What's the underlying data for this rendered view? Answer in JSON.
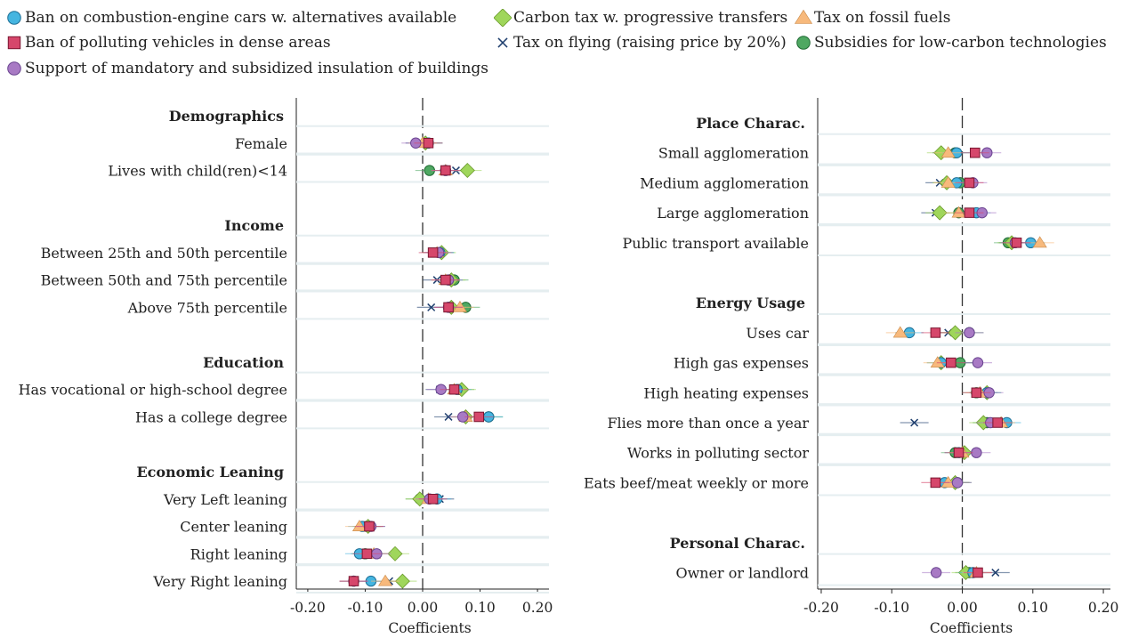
{
  "legend": [
    {
      "key": "ban_ice",
      "label": "Ban on combustion-engine cars w. alternatives available",
      "marker": "circle",
      "color": "#45b5e0"
    },
    {
      "key": "carbon_tax",
      "label": "Carbon tax w. progressive transfers",
      "marker": "diamond",
      "color": "#9fd65b"
    },
    {
      "key": "fuel_tax",
      "label": "Tax on fossil fuels",
      "marker": "triangle",
      "color": "#f7b97c"
    },
    {
      "key": "ban_polluting",
      "label": "Ban of polluting vehicles in dense areas",
      "marker": "square",
      "color": "#d6476b"
    },
    {
      "key": "flying_tax",
      "label": "Tax on flying (raising price by 20%)",
      "marker": "x",
      "color": "#1f3f6e"
    },
    {
      "key": "subsidies",
      "label": "Subsidies for low-carbon technologies",
      "marker": "circle",
      "color": "#4fa862"
    },
    {
      "key": "insulation",
      "label": "Support of mandatory and subsidized insulation of buildings",
      "marker": "circle",
      "color": "#a87ac4"
    }
  ],
  "chart_data": [
    {
      "type": "scatter",
      "xlabel": "Coefficients",
      "xlim": [
        -0.22,
        0.22
      ],
      "xticks": [
        "-0.20",
        "-0.10",
        "0.00",
        "0.10",
        "0.20"
      ],
      "xtick_values": [
        -0.2,
        -0.1,
        0.0,
        0.1,
        0.2
      ],
      "rows": [
        {
          "header": "Demographics"
        },
        {
          "label": "Female",
          "values": {
            "ban_ice": 0.01,
            "carbon_tax": 0.005,
            "fuel_tax": 0.0,
            "ban_polluting": 0.01,
            "flying_tax": -0.005,
            "subsidies": 0.01,
            "insulation": -0.012
          }
        },
        {
          "label": "Lives with child(ren)<14",
          "values": {
            "ban_ice": 0.04,
            "carbon_tax": 0.078,
            "fuel_tax": 0.04,
            "ban_polluting": 0.04,
            "flying_tax": 0.058,
            "subsidies": 0.012,
            "insulation": 0.04
          }
        },
        {
          "blank": true
        },
        {
          "header": "Income"
        },
        {
          "label": "Between 25th and 50th percentile",
          "values": {
            "ban_ice": 0.03,
            "carbon_tax": 0.033,
            "fuel_tax": 0.025,
            "ban_polluting": 0.018,
            "flying_tax": 0.025,
            "subsidies": 0.03,
            "insulation": 0.028
          }
        },
        {
          "label": "Between 50th and 75th percentile",
          "values": {
            "ban_ice": 0.045,
            "carbon_tax": 0.05,
            "fuel_tax": 0.04,
            "ban_polluting": 0.04,
            "flying_tax": 0.025,
            "subsidies": 0.055,
            "insulation": 0.045
          }
        },
        {
          "label": "Above 75th percentile",
          "values": {
            "ban_ice": 0.045,
            "carbon_tax": 0.05,
            "fuel_tax": 0.065,
            "ban_polluting": 0.045,
            "flying_tax": 0.015,
            "subsidies": 0.075,
            "insulation": 0.045
          }
        },
        {
          "blank": true
        },
        {
          "header": "Education"
        },
        {
          "label": "Has vocational or high-school degree",
          "values": {
            "ban_ice": 0.06,
            "carbon_tax": 0.068,
            "fuel_tax": 0.055,
            "ban_polluting": 0.055,
            "flying_tax": 0.03,
            "subsidies": 0.065,
            "insulation": 0.032
          }
        },
        {
          "label": "Has a college degree",
          "values": {
            "ban_ice": 0.115,
            "carbon_tax": 0.075,
            "fuel_tax": 0.075,
            "ban_polluting": 0.098,
            "flying_tax": 0.045,
            "subsidies": 0.115,
            "insulation": 0.07
          }
        },
        {
          "blank": true
        },
        {
          "header": "Economic Leaning"
        },
        {
          "label": "Very Left leaning",
          "values": {
            "ban_ice": 0.025,
            "carbon_tax": -0.005,
            "fuel_tax": 0.01,
            "ban_polluting": 0.018,
            "flying_tax": 0.03,
            "subsidies": -0.005,
            "insulation": 0.012
          }
        },
        {
          "label": "Center leaning",
          "values": {
            "ban_ice": -0.105,
            "carbon_tax": -0.095,
            "fuel_tax": -0.11,
            "ban_polluting": -0.093,
            "flying_tax": -0.09,
            "subsidies": -0.097,
            "insulation": -0.09
          }
        },
        {
          "label": "Right leaning",
          "values": {
            "ban_ice": -0.11,
            "carbon_tax": -0.048,
            "fuel_tax": -0.085,
            "ban_polluting": -0.097,
            "flying_tax": -0.08,
            "subsidies": -0.1,
            "insulation": -0.08
          }
        },
        {
          "label": "Very Right leaning",
          "values": {
            "ban_ice": -0.09,
            "carbon_tax": -0.035,
            "fuel_tax": -0.065,
            "ban_polluting": -0.12,
            "flying_tax": -0.058,
            "subsidies": -0.12,
            "insulation": -0.12
          }
        }
      ]
    },
    {
      "type": "scatter",
      "xlabel": "Coefficients",
      "xlim": [
        -0.205,
        0.21
      ],
      "xticks": [
        "-0.20",
        "-0.10",
        "0.00",
        "0.10",
        "0.20"
      ],
      "xtick_values": [
        -0.2,
        -0.1,
        0.0,
        0.1,
        0.2
      ],
      "rows": [
        {
          "header": "Place Charac."
        },
        {
          "label": "Small agglomeration",
          "values": {
            "ban_ice": -0.008,
            "carbon_tax": -0.03,
            "fuel_tax": -0.02,
            "ban_polluting": 0.018,
            "flying_tax": -0.022,
            "subsidies": -0.01,
            "insulation": 0.035
          }
        },
        {
          "label": "Medium agglomeration",
          "values": {
            "ban_ice": -0.008,
            "carbon_tax": -0.022,
            "fuel_tax": -0.02,
            "ban_polluting": 0.01,
            "flying_tax": -0.032,
            "subsidies": -0.003,
            "insulation": 0.015
          }
        },
        {
          "label": "Large agglomeration",
          "values": {
            "ban_ice": 0.02,
            "carbon_tax": -0.032,
            "fuel_tax": -0.005,
            "ban_polluting": 0.01,
            "flying_tax": -0.038,
            "subsidies": -0.005,
            "insulation": 0.028
          }
        },
        {
          "label": "Public transport available",
          "values": {
            "ban_ice": 0.097,
            "carbon_tax": 0.07,
            "fuel_tax": 0.11,
            "ban_polluting": 0.077,
            "flying_tax": 0.072,
            "subsidies": 0.065,
            "insulation": 0.075
          }
        },
        {
          "blank": true
        },
        {
          "header": "Energy Usage"
        },
        {
          "label": "Uses car",
          "values": {
            "ban_ice": -0.075,
            "carbon_tax": -0.01,
            "fuel_tax": -0.088,
            "ban_polluting": -0.038,
            "flying_tax": -0.02,
            "subsidies": 0.01,
            "insulation": 0.01
          }
        },
        {
          "label": "High gas expenses",
          "values": {
            "ban_ice": -0.03,
            "carbon_tax": -0.03,
            "fuel_tax": -0.035,
            "ban_polluting": -0.016,
            "flying_tax": -0.003,
            "subsidies": -0.003,
            "insulation": 0.022
          }
        },
        {
          "label": "High heating expenses",
          "values": {
            "ban_ice": 0.035,
            "carbon_tax": 0.035,
            "fuel_tax": 0.025,
            "ban_polluting": 0.02,
            "flying_tax": 0.03,
            "subsidies": 0.02,
            "insulation": 0.038
          }
        },
        {
          "label": "Flies more than once a year",
          "values": {
            "ban_ice": 0.063,
            "carbon_tax": 0.03,
            "fuel_tax": 0.055,
            "ban_polluting": 0.05,
            "flying_tax": -0.068,
            "subsidies": 0.035,
            "insulation": 0.04
          }
        },
        {
          "label": "Works in polluting sector",
          "values": {
            "ban_ice": -0.005,
            "carbon_tax": 0.003,
            "fuel_tax": 0.0,
            "ban_polluting": -0.005,
            "flying_tax": 0.003,
            "subsidies": -0.01,
            "insulation": 0.02
          }
        },
        {
          "label": "Eats beef/meat weekly or more",
          "values": {
            "ban_ice": -0.025,
            "carbon_tax": -0.01,
            "fuel_tax": -0.02,
            "ban_polluting": -0.038,
            "flying_tax": -0.01,
            "subsidies": -0.007,
            "insulation": -0.007
          }
        },
        {
          "blank": true
        },
        {
          "header": "Personal Charac."
        },
        {
          "label": "Owner or landlord",
          "values": {
            "ban_ice": 0.015,
            "carbon_tax": 0.005,
            "fuel_tax": 0.02,
            "ban_polluting": 0.022,
            "flying_tax": 0.047,
            "subsidies": 0.01,
            "insulation": -0.037
          }
        }
      ]
    }
  ]
}
